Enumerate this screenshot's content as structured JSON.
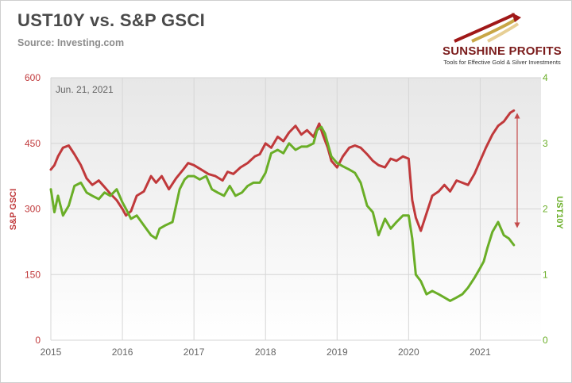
{
  "header": {
    "title": "UST10Y vs. S&P GSCI",
    "source": "Source: Investing.com"
  },
  "logo": {
    "name": "SUNSHINE PROFITS",
    "tagline": "Tools for Effective Gold & Silver Investments"
  },
  "colors": {
    "gsci": "#c0393b",
    "ust": "#6aae27",
    "arrow": "#c44a4a",
    "grid": "#d6d6d6",
    "left_axis_text": "#c0393b",
    "right_axis_text": "#6aae27",
    "x_axis_text": "#666666"
  },
  "chart_data": {
    "type": "line",
    "annotation": "Jun. 21, 2021",
    "x_ticks": [
      "2015",
      "2016",
      "2017",
      "2018",
      "2019",
      "2020",
      "2021"
    ],
    "x_range": [
      2015.0,
      2021.85
    ],
    "y_left": {
      "label": "S&P GSCI",
      "ticks": [
        "0",
        "150",
        "300",
        "450",
        "600"
      ],
      "range": [
        0,
        600
      ]
    },
    "y_right": {
      "label": "UST10Y",
      "ticks": [
        "0",
        "1",
        "2",
        "3",
        "4"
      ],
      "range": [
        0,
        4
      ]
    },
    "grid": true,
    "series": [
      {
        "name": "S&P GSCI",
        "axis": "left",
        "x": [
          2015.0,
          2015.05,
          2015.1,
          2015.17,
          2015.25,
          2015.33,
          2015.42,
          2015.5,
          2015.58,
          2015.67,
          2015.75,
          2015.83,
          2015.92,
          2016.0,
          2016.05,
          2016.12,
          2016.2,
          2016.3,
          2016.4,
          2016.47,
          2016.55,
          2016.65,
          2016.75,
          2016.85,
          2016.92,
          2017.0,
          2017.1,
          2017.2,
          2017.3,
          2017.4,
          2017.47,
          2017.55,
          2017.65,
          2017.75,
          2017.85,
          2017.92,
          2018.0,
          2018.08,
          2018.17,
          2018.25,
          2018.33,
          2018.42,
          2018.5,
          2018.58,
          2018.67,
          2018.75,
          2018.8,
          2018.87,
          2018.92,
          2019.0,
          2019.08,
          2019.17,
          2019.25,
          2019.33,
          2019.42,
          2019.5,
          2019.58,
          2019.67,
          2019.75,
          2019.83,
          2019.92,
          2020.0,
          2020.05,
          2020.1,
          2020.17,
          2020.22,
          2020.27,
          2020.33,
          2020.42,
          2020.5,
          2020.58,
          2020.67,
          2020.75,
          2020.83,
          2020.92,
          2021.0,
          2021.08,
          2021.17,
          2021.25,
          2021.33,
          2021.42,
          2021.47
        ],
        "y": [
          390,
          400,
          420,
          440,
          445,
          425,
          400,
          370,
          355,
          365,
          350,
          335,
          320,
          300,
          285,
          295,
          330,
          340,
          375,
          360,
          375,
          345,
          370,
          390,
          405,
          400,
          390,
          380,
          375,
          365,
          385,
          380,
          395,
          405,
          420,
          425,
          450,
          440,
          465,
          455,
          475,
          490,
          470,
          480,
          465,
          495,
          470,
          440,
          410,
          395,
          420,
          440,
          445,
          440,
          425,
          410,
          400,
          395,
          415,
          410,
          420,
          415,
          320,
          280,
          250,
          275,
          300,
          330,
          340,
          355,
          340,
          365,
          360,
          355,
          380,
          410,
          440,
          470,
          490,
          500,
          520,
          525
        ]
      },
      {
        "name": "UST10Y",
        "axis": "right",
        "x": [
          2015.0,
          2015.05,
          2015.1,
          2015.17,
          2015.25,
          2015.33,
          2015.42,
          2015.5,
          2015.58,
          2015.67,
          2015.75,
          2015.83,
          2015.92,
          2016.0,
          2016.05,
          2016.12,
          2016.2,
          2016.3,
          2016.4,
          2016.47,
          2016.52,
          2016.6,
          2016.7,
          2016.8,
          2016.87,
          2016.92,
          2017.0,
          2017.08,
          2017.17,
          2017.25,
          2017.33,
          2017.42,
          2017.5,
          2017.58,
          2017.67,
          2017.75,
          2017.83,
          2017.92,
          2018.0,
          2018.08,
          2018.17,
          2018.25,
          2018.33,
          2018.42,
          2018.5,
          2018.58,
          2018.67,
          2018.72,
          2018.78,
          2018.83,
          2018.92,
          2019.0,
          2019.08,
          2019.17,
          2019.25,
          2019.33,
          2019.42,
          2019.5,
          2019.58,
          2019.67,
          2019.75,
          2019.83,
          2019.92,
          2020.0,
          2020.05,
          2020.1,
          2020.17,
          2020.25,
          2020.33,
          2020.42,
          2020.5,
          2020.58,
          2020.67,
          2020.75,
          2020.83,
          2020.92,
          2021.0,
          2021.05,
          2021.1,
          2021.17,
          2021.25,
          2021.33,
          2021.4,
          2021.47
        ],
        "y": [
          2.3,
          1.95,
          2.2,
          1.9,
          2.05,
          2.35,
          2.4,
          2.25,
          2.2,
          2.15,
          2.25,
          2.2,
          2.3,
          2.1,
          2.0,
          1.85,
          1.9,
          1.75,
          1.6,
          1.55,
          1.7,
          1.75,
          1.8,
          2.3,
          2.45,
          2.5,
          2.5,
          2.45,
          2.5,
          2.3,
          2.25,
          2.2,
          2.35,
          2.2,
          2.25,
          2.35,
          2.4,
          2.4,
          2.55,
          2.85,
          2.9,
          2.85,
          3.0,
          2.9,
          2.95,
          2.95,
          3.0,
          3.2,
          3.25,
          3.15,
          2.8,
          2.7,
          2.65,
          2.6,
          2.55,
          2.4,
          2.05,
          1.95,
          1.6,
          1.85,
          1.7,
          1.8,
          1.9,
          1.9,
          1.55,
          1.0,
          0.9,
          0.7,
          0.75,
          0.7,
          0.65,
          0.6,
          0.65,
          0.7,
          0.8,
          0.95,
          1.1,
          1.2,
          1.4,
          1.65,
          1.8,
          1.6,
          1.55,
          1.45
        ]
      }
    ]
  }
}
